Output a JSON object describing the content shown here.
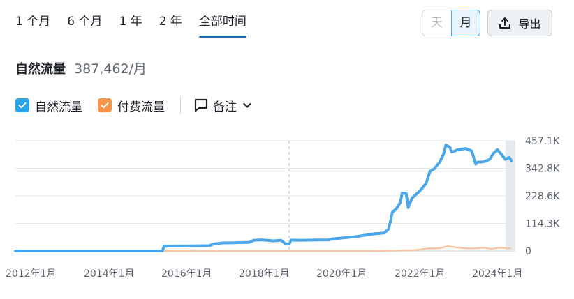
{
  "range_tabs": [
    {
      "label": "1 个月"
    },
    {
      "label": "6 个月"
    },
    {
      "label": "1 年"
    },
    {
      "label": "2 年"
    },
    {
      "label": "全部时间",
      "active": true
    }
  ],
  "granularity": {
    "day_label": "天",
    "month_label": "月",
    "selected": "月"
  },
  "export_label": "导出",
  "headline": {
    "label": "自然流量",
    "value": "387,462/月"
  },
  "legend": {
    "organic_label": "自然流量",
    "paid_label": "付费流量",
    "notes_label": "备注"
  },
  "colors": {
    "organic": "#4aa8ea",
    "paid": "#f9c7a7",
    "accent": "#1f6fb5"
  },
  "chart_data": {
    "type": "line",
    "x_ticks": [
      "2012年1月",
      "2014年1月",
      "2016年1月",
      "2018年1月",
      "2020年1月",
      "2022年1月",
      "2024年1月"
    ],
    "y_ticks": [
      "457.1K",
      "342.8K",
      "228.6K",
      "114.3K",
      "0"
    ],
    "ylim": [
      0,
      457100
    ],
    "xlim": [
      2012.0,
      2024.6
    ],
    "grid": true,
    "series": [
      {
        "name": "自然流量",
        "points": [
          [
            2012.0,
            0
          ],
          [
            2014.0,
            0
          ],
          [
            2015.0,
            0
          ],
          [
            2015.7,
            0
          ],
          [
            2015.75,
            20000
          ],
          [
            2016.5,
            21000
          ],
          [
            2016.9,
            22000
          ],
          [
            2017.0,
            29000
          ],
          [
            2017.2,
            33000
          ],
          [
            2017.5,
            34000
          ],
          [
            2017.9,
            36000
          ],
          [
            2018.0,
            44000
          ],
          [
            2018.2,
            46000
          ],
          [
            2018.5,
            42000
          ],
          [
            2018.7,
            44000
          ],
          [
            2018.8,
            30000
          ],
          [
            2018.9,
            28000
          ],
          [
            2018.95,
            45000
          ],
          [
            2019.2,
            44000
          ],
          [
            2019.5,
            45000
          ],
          [
            2019.9,
            46000
          ],
          [
            2020.0,
            50000
          ],
          [
            2020.3,
            55000
          ],
          [
            2020.6,
            60000
          ],
          [
            2021.0,
            70000
          ],
          [
            2021.3,
            75000
          ],
          [
            2021.4,
            90000
          ],
          [
            2021.45,
            120000
          ],
          [
            2021.5,
            160000
          ],
          [
            2021.6,
            175000
          ],
          [
            2021.7,
            200000
          ],
          [
            2021.75,
            240000
          ],
          [
            2021.85,
            238000
          ],
          [
            2021.9,
            180000
          ],
          [
            2021.95,
            200000
          ],
          [
            2022.0,
            220000
          ],
          [
            2022.2,
            250000
          ],
          [
            2022.35,
            280000
          ],
          [
            2022.45,
            330000
          ],
          [
            2022.55,
            340000
          ],
          [
            2022.7,
            370000
          ],
          [
            2022.8,
            405000
          ],
          [
            2022.85,
            440000
          ],
          [
            2022.95,
            430000
          ],
          [
            2023.0,
            410000
          ],
          [
            2023.15,
            420000
          ],
          [
            2023.35,
            425000
          ],
          [
            2023.5,
            415000
          ],
          [
            2023.6,
            360000
          ],
          [
            2023.65,
            368000
          ],
          [
            2023.8,
            370000
          ],
          [
            2023.95,
            380000
          ],
          [
            2024.05,
            405000
          ],
          [
            2024.15,
            420000
          ],
          [
            2024.25,
            400000
          ],
          [
            2024.35,
            380000
          ],
          [
            2024.45,
            388000
          ],
          [
            2024.5,
            375000
          ]
        ]
      },
      {
        "name": "付费流量",
        "points": [
          [
            2012.0,
            0
          ],
          [
            2021.0,
            0
          ],
          [
            2022.0,
            2000
          ],
          [
            2022.4,
            10000
          ],
          [
            2022.7,
            12000
          ],
          [
            2022.9,
            20000
          ],
          [
            2023.1,
            15000
          ],
          [
            2023.3,
            12000
          ],
          [
            2023.5,
            10000
          ],
          [
            2023.8,
            14000
          ],
          [
            2024.0,
            8000
          ],
          [
            2024.2,
            14000
          ],
          [
            2024.5,
            10000
          ]
        ]
      }
    ],
    "annotation_marker_x": 2018.9,
    "highlight_from_x": 2024.35
  }
}
